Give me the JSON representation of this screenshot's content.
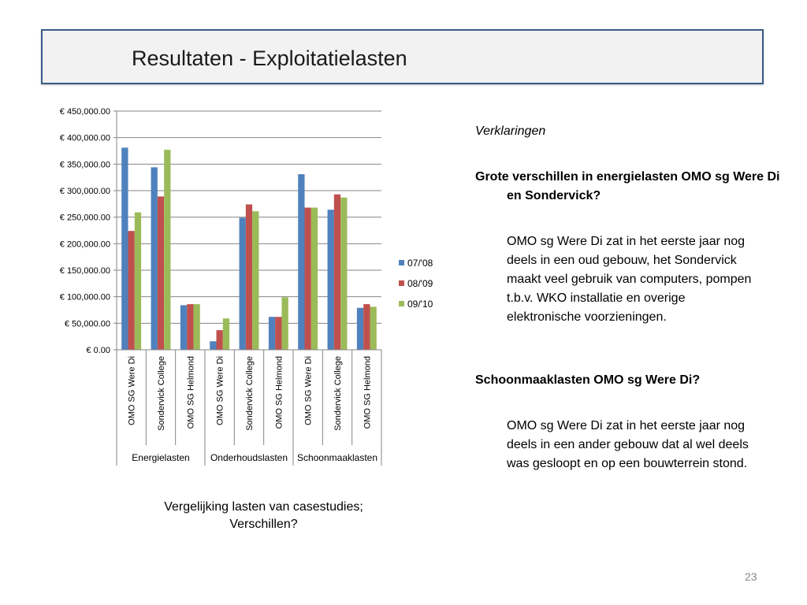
{
  "slide": {
    "title": "Resultaten - Exploitatielasten",
    "caption_line1": "Vergelijking lasten van casestudies;",
    "caption_line2": "Verschillen?",
    "page_number": "23"
  },
  "notes": {
    "heading": "Verklaringen",
    "question1": "Grote verschillen in energielasten OMO sg Were Di en Sondervick?",
    "answer1": "OMO sg Were Di zat in het eerste jaar nog deels in een oud gebouw, het Sondervick maakt veel gebruik van computers, pompen t.b.v. WKO installatie en overige elektronische voorzieningen.",
    "question2": "Schoonmaaklasten OMO sg Were Di?",
    "answer2": "OMO sg Were Di zat in het eerste jaar nog deels in een ander gebouw dat al wel deels was gesloopt en op een bouwterrein stond."
  },
  "chart_data": {
    "type": "bar",
    "ylim": [
      0,
      450000
    ],
    "ytick_step": 50000,
    "ytick_labels": [
      "€ 0.00",
      "€ 50,000.00",
      "€ 100,000.00",
      "€ 150,000.00",
      "€ 200,000.00",
      "€ 250,000.00",
      "€ 300,000.00",
      "€ 350,000.00",
      "€ 400,000.00",
      "€ 450,000.00"
    ],
    "grid": true,
    "legend_position": "right",
    "categories": [
      "OMO SG Were Di",
      "Sondervick College",
      "OMO SG Helmond",
      "OMO SG Were Di",
      "Sondervick College",
      "OMO SG Helmond",
      "OMO SG Were Di",
      "Sondervick College",
      "OMO SG Helmond"
    ],
    "groups": [
      {
        "label": "Energielasten",
        "count": 3
      },
      {
        "label": "Onderhoudslasten",
        "count": 3
      },
      {
        "label": "Schoonmaaklasten",
        "count": 3
      }
    ],
    "series": [
      {
        "name": "07/'08",
        "color": "#4f81bd",
        "values": [
          381000,
          344000,
          84000,
          16000,
          249000,
          62000,
          331000,
          264000,
          79000
        ]
      },
      {
        "name": "08/'09",
        "color": "#c0504d",
        "values": [
          224000,
          289000,
          86000,
          37000,
          274000,
          62000,
          268000,
          293000,
          86000
        ]
      },
      {
        "name": "09/'10",
        "color": "#9bbb59",
        "values": [
          259000,
          377000,
          86000,
          59000,
          261000,
          99000,
          268000,
          287000,
          81000
        ]
      }
    ]
  }
}
